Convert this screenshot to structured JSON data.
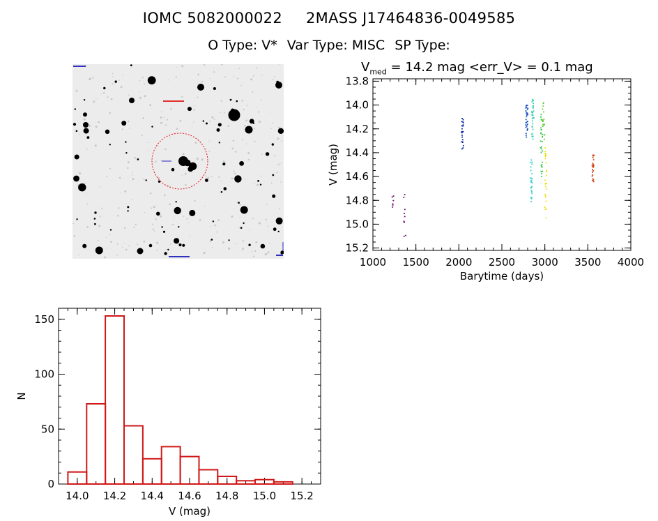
{
  "header": {
    "object_id": "IOMC 5082000022",
    "mass_id": "2MASS J17464836-0049585",
    "o_type": "O Type: V*",
    "var_type": "Var Type: MISC",
    "sp_type": "SP Type:"
  },
  "lightcurve_title": {
    "prefix": "V",
    "subscript": "med",
    "rest": " = 14.2 mag <err_V> = 0.1 mag"
  },
  "finder": {
    "target_circle_color": "#e8101c",
    "stars_color": "#000000"
  },
  "chart_data": [
    {
      "type": "scatter",
      "title": "",
      "xlabel": "Barytime (days)",
      "ylabel": "V (mag)",
      "xlim": [
        1000,
        4000
      ],
      "ylim": [
        15.22,
        13.78
      ],
      "y_inverted": true,
      "xticks": [
        1000,
        1500,
        2000,
        2500,
        3000,
        3500,
        4000
      ],
      "yticks": [
        13.8,
        14.0,
        14.2,
        14.4,
        14.6,
        14.8,
        15.0,
        15.2
      ],
      "ytick_labels": [
        "13.8",
        "14.0",
        "14.2",
        "14.4",
        "14.6",
        "14.8",
        "15.0",
        "15.2"
      ],
      "grid": false,
      "colors": [
        "#6a0a6a",
        "#0a2aa0",
        "#18a8e8",
        "#30d0d0",
        "#30c840",
        "#e8e010",
        "#d04010"
      ],
      "clusters": [
        {
          "x": 1230,
          "y_min": 14.75,
          "y_max": 14.93,
          "color": "#6a0a6a",
          "n": 6
        },
        {
          "x": 1370,
          "y_min": 14.7,
          "y_max": 15.12,
          "color": "#6a0a6a",
          "n": 10
        },
        {
          "x": 2040,
          "y_min": 14.1,
          "y_max": 14.38,
          "color": "#0a2aa0",
          "n": 24
        },
        {
          "x": 2790,
          "y_min": 14.0,
          "y_max": 14.3,
          "color": "#1850c0",
          "n": 30
        },
        {
          "x": 2840,
          "y_min": 14.45,
          "y_max": 14.82,
          "color": "#30d0d0",
          "n": 26
        },
        {
          "x": 2860,
          "y_min": 13.94,
          "y_max": 14.3,
          "color": "#30d0b0",
          "n": 30
        },
        {
          "x": 2960,
          "y_min": 14.05,
          "y_max": 14.62,
          "color": "#30c840",
          "n": 30
        },
        {
          "x": 2985,
          "y_min": 13.98,
          "y_max": 14.3,
          "color": "#60d030",
          "n": 18
        },
        {
          "x": 3010,
          "y_min": 14.35,
          "y_max": 15.02,
          "color": "#e8e010",
          "n": 28
        },
        {
          "x": 3560,
          "y_min": 14.42,
          "y_max": 14.65,
          "color": "#d04010",
          "n": 22
        }
      ]
    },
    {
      "type": "bar",
      "title": "",
      "xlabel": "V (mag)",
      "ylabel": "N",
      "xlim": [
        13.9,
        15.3
      ],
      "ylim": [
        0,
        160
      ],
      "xticks": [
        14.0,
        14.2,
        14.4,
        14.6,
        14.8,
        15.0,
        15.2
      ],
      "xtick_labels": [
        "14.0",
        "14.2",
        "14.4",
        "14.6",
        "14.8",
        "15.0",
        "15.2"
      ],
      "yticks": [
        0,
        50,
        100,
        150
      ],
      "bar_color": "#d01818",
      "bin_edges": [
        13.95,
        14.05,
        14.15,
        14.25,
        14.35,
        14.45,
        14.55,
        14.65,
        14.75,
        14.85,
        14.95,
        15.05,
        15.15
      ],
      "values": [
        11,
        73,
        153,
        53,
        23,
        34,
        25,
        13,
        7,
        3,
        4,
        2
      ]
    }
  ]
}
